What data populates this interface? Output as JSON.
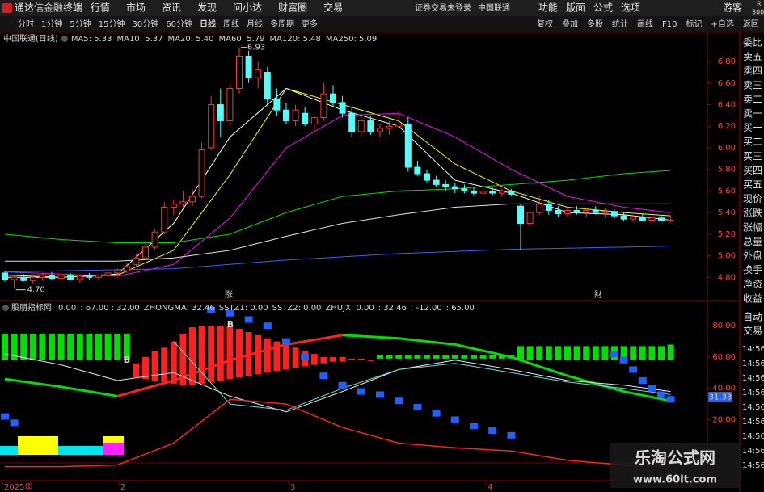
{
  "app": {
    "title": "通达信金融终端",
    "menu": [
      "行情",
      "市场",
      "资讯",
      "发现",
      "问小达",
      "财富圈",
      "交易"
    ],
    "status": "证券交易未登录",
    "stock": "中国联通",
    "tools": [
      "功能",
      "版面",
      "公式",
      "选项"
    ],
    "user": "游客",
    "corner": [
      "R",
      "300"
    ]
  },
  "toolbar": {
    "periods": [
      "分时",
      "1分钟",
      "5分钟",
      "15分钟",
      "30分钟",
      "60分钟",
      "日线",
      "周线",
      "月线",
      "多周期",
      "更多"
    ],
    "active": "日线",
    "actions": [
      "复权",
      "叠加",
      "多股",
      "统计",
      "画线",
      "F10",
      "标记",
      "+自选",
      "返回"
    ]
  },
  "chart_data": [
    {
      "type": "candlestick",
      "title": "中国联通(日线)",
      "up_color": "#ff3232",
      "down_color": "#54fcfc",
      "ohlc": [
        [
          4.84,
          4.86,
          4.76,
          4.78
        ],
        [
          4.78,
          4.82,
          4.7,
          4.8
        ],
        [
          4.8,
          4.83,
          4.76,
          4.77
        ],
        [
          4.77,
          4.81,
          4.74,
          4.8
        ],
        [
          4.8,
          4.84,
          4.77,
          4.82
        ],
        [
          4.82,
          4.85,
          4.78,
          4.79
        ],
        [
          4.79,
          4.83,
          4.76,
          4.82
        ],
        [
          4.82,
          4.84,
          4.77,
          4.78
        ],
        [
          4.78,
          4.82,
          4.75,
          4.81
        ],
        [
          4.81,
          4.84,
          4.78,
          4.8
        ],
        [
          4.8,
          4.83,
          4.77,
          4.82
        ],
        [
          4.82,
          4.86,
          4.8,
          4.84
        ],
        [
          4.84,
          4.88,
          4.82,
          4.86
        ],
        [
          4.86,
          4.93,
          4.84,
          4.9
        ],
        [
          4.92,
          5.02,
          4.9,
          4.98
        ],
        [
          4.98,
          5.12,
          4.96,
          5.08
        ],
        [
          5.08,
          5.25,
          5.06,
          5.22
        ],
        [
          5.22,
          5.5,
          5.2,
          5.45
        ],
        [
          5.45,
          5.52,
          5.38,
          5.48
        ],
        [
          5.48,
          5.6,
          5.44,
          5.5
        ],
        [
          5.5,
          5.62,
          5.46,
          5.55
        ],
        [
          5.55,
          6.05,
          5.53,
          5.98
        ],
        [
          6.0,
          6.48,
          5.98,
          6.4
        ],
        [
          6.4,
          6.55,
          6.1,
          6.25
        ],
        [
          6.25,
          6.6,
          6.2,
          6.55
        ],
        [
          6.55,
          6.93,
          6.5,
          6.85
        ],
        [
          6.85,
          6.9,
          6.6,
          6.65
        ],
        [
          6.65,
          6.8,
          6.55,
          6.72
        ],
        [
          6.7,
          6.75,
          6.4,
          6.45
        ],
        [
          6.45,
          6.55,
          6.3,
          6.35
        ],
        [
          6.35,
          6.42,
          6.22,
          6.25
        ],
        [
          6.25,
          6.4,
          6.2,
          6.35
        ],
        [
          6.32,
          6.38,
          6.2,
          6.22
        ],
        [
          6.22,
          6.3,
          6.15,
          6.28
        ],
        [
          6.28,
          6.6,
          6.25,
          6.5
        ],
        [
          6.5,
          6.58,
          6.38,
          6.42
        ],
        [
          6.42,
          6.48,
          6.28,
          6.32
        ],
        [
          6.32,
          6.38,
          6.1,
          6.15
        ],
        [
          6.15,
          6.3,
          6.1,
          6.25
        ],
        [
          6.25,
          6.3,
          6.12,
          6.15
        ],
        [
          6.15,
          6.22,
          6.1,
          6.18
        ],
        [
          6.18,
          6.25,
          6.12,
          6.2
        ],
        [
          6.2,
          6.35,
          6.18,
          6.22
        ],
        [
          6.22,
          6.28,
          5.78,
          5.82
        ],
        [
          5.82,
          5.88,
          5.74,
          5.76
        ],
        [
          5.76,
          5.8,
          5.68,
          5.7
        ],
        [
          5.7,
          5.74,
          5.64,
          5.66
        ],
        [
          5.66,
          5.7,
          5.6,
          5.64
        ],
        [
          5.64,
          5.68,
          5.58,
          5.62
        ],
        [
          5.62,
          5.66,
          5.58,
          5.6
        ],
        [
          5.6,
          5.64,
          5.56,
          5.58
        ],
        [
          5.58,
          5.62,
          5.54,
          5.6
        ],
        [
          5.6,
          5.63,
          5.56,
          5.58
        ],
        [
          5.58,
          5.62,
          5.55,
          5.6
        ],
        [
          5.6,
          5.62,
          5.56,
          5.57
        ],
        [
          5.46,
          5.48,
          5.05,
          5.3
        ],
        [
          5.3,
          5.44,
          5.28,
          5.4
        ],
        [
          5.4,
          5.55,
          5.38,
          5.48
        ],
        [
          5.48,
          5.52,
          5.38,
          5.42
        ],
        [
          5.42,
          5.46,
          5.36,
          5.39
        ],
        [
          5.39,
          5.45,
          5.36,
          5.42
        ],
        [
          5.42,
          5.46,
          5.38,
          5.4
        ],
        [
          5.4,
          5.44,
          5.36,
          5.42
        ],
        [
          5.42,
          5.46,
          5.38,
          5.4
        ],
        [
          5.4,
          5.44,
          5.36,
          5.41
        ],
        [
          5.41,
          5.43,
          5.35,
          5.37
        ],
        [
          5.37,
          5.4,
          5.32,
          5.34
        ],
        [
          5.34,
          5.38,
          5.31,
          5.36
        ],
        [
          5.36,
          5.39,
          5.32,
          5.33
        ],
        [
          5.33,
          5.38,
          5.3,
          5.35
        ],
        [
          5.35,
          5.38,
          5.32,
          5.33
        ],
        [
          5.33,
          5.36,
          5.31,
          5.33
        ]
      ],
      "ylim": [
        4.69,
        7.07
      ],
      "yticks": [
        {
          "value": 6.8,
          "label": "6.80"
        },
        {
          "value": 6.6,
          "label": "6.60"
        },
        {
          "value": 6.4,
          "label": "6.40"
        },
        {
          "value": 6.2,
          "label": "6.20"
        },
        {
          "value": 6.0,
          "label": "6.00"
        },
        {
          "value": 5.8,
          "label": "5.80"
        },
        {
          "value": 5.6,
          "label": "5.60"
        },
        {
          "value": 5.4,
          "label": "5.40"
        },
        {
          "value": 5.2,
          "label": "5.20"
        },
        {
          "value": 5.0,
          "label": "5.00"
        },
        {
          "value": 4.8,
          "label": "4.80"
        }
      ],
      "high_label": "6.93",
      "low_label": "4.70",
      "markers": [
        "涨",
        "财"
      ],
      "x_labels": [
        "2025年",
        "2",
        "3",
        "4"
      ],
      "ma_x": [
        0,
        6,
        12,
        18,
        24,
        30,
        36,
        42,
        48,
        54,
        60,
        66,
        71
      ],
      "series": [
        {
          "name": "MA5",
          "legend": "MA5: 5.33",
          "color": "#ffffff",
          "values": [
            4.8,
            4.8,
            4.83,
            5.3,
            6.1,
            6.55,
            6.35,
            6.2,
            5.7,
            5.58,
            5.4,
            5.38,
            5.33
          ]
        },
        {
          "name": "MA10",
          "legend": "MA10: 5.37",
          "color": "#ffff00",
          "values": [
            4.82,
            4.8,
            4.82,
            5.05,
            5.75,
            6.55,
            6.4,
            6.25,
            5.85,
            5.6,
            5.45,
            5.4,
            5.37
          ]
        },
        {
          "name": "MA20",
          "legend": "MA20: 5.40",
          "color": "#ff00ff",
          "values": [
            4.85,
            4.83,
            4.81,
            4.92,
            5.35,
            6.0,
            6.3,
            6.32,
            6.1,
            5.8,
            5.55,
            5.45,
            5.4
          ]
        },
        {
          "name": "MA60",
          "legend": "MA60: 5.79",
          "color": "#00e000",
          "values": [
            5.2,
            5.15,
            5.12,
            5.12,
            5.2,
            5.4,
            5.55,
            5.6,
            5.62,
            5.66,
            5.7,
            5.76,
            5.79
          ]
        },
        {
          "name": "MA120",
          "legend": "MA120: 5.48",
          "color": "#e0e0e0",
          "values": [
            4.95,
            4.95,
            4.95,
            4.98,
            5.05,
            5.18,
            5.3,
            5.38,
            5.45,
            5.48,
            5.48,
            5.48,
            5.48
          ]
        },
        {
          "name": "MA250",
          "legend": "MA250: 5.09",
          "color": "#3f5fff",
          "values": [
            4.85,
            4.86,
            4.87,
            4.88,
            4.92,
            4.96,
            4.99,
            5.02,
            5.04,
            5.06,
            5.07,
            5.08,
            5.09
          ]
        }
      ]
    },
    {
      "type": "indicator",
      "title": "股朋指标网",
      "legend": [
        {
          "text": "0.00",
          "color": "#ff4040"
        },
        {
          "text": ": 67.00 : 32.00",
          "color": "#e0e0e0"
        },
        {
          "text": "ZHONGMA: 32.46",
          "color": "#00e000"
        },
        {
          "text": "SSTZ1: 0.00",
          "color": "#ffffff"
        },
        {
          "text": "SSTZ2: 0.00",
          "color": "#3060ff"
        },
        {
          "text": "ZHUJX: 0.00",
          "color": "#ffffff"
        },
        {
          "text": ": 32.46",
          "color": "#00e000"
        },
        {
          "text": ": -12.00",
          "color": "#ff4040"
        },
        {
          "text": ": 65.00",
          "color": "#ffffff"
        }
      ],
      "ylim": [
        -19,
        93
      ],
      "yticks": [
        {
          "value": 80,
          "label": "80.00"
        },
        {
          "value": 60,
          "label": "60.00"
        },
        {
          "value": 40,
          "label": "40.00"
        },
        {
          "value": 20,
          "label": "20.00"
        }
      ],
      "x": [
        0,
        6,
        12,
        18,
        24,
        30,
        36,
        42,
        48,
        54,
        60,
        66,
        71
      ],
      "series": [
        {
          "name": "ZHONGMA",
          "color": "#00e000",
          "width": 3,
          "values": [
            46,
            41,
            35,
            null,
            null,
            null,
            74,
            72,
            68,
            60,
            48,
            38,
            32
          ]
        },
        {
          "name": "ZHONGMA",
          "color": "#ff2020",
          "width": 3,
          "values": [
            null,
            null,
            35,
            45,
            58,
            68,
            74,
            null,
            null,
            null,
            null,
            null,
            null
          ]
        },
        {
          "name": "ZHUJX",
          "color": "#e8e8e8",
          "width": 1,
          "values": [
            62,
            55,
            45,
            50,
            35,
            25,
            38,
            52,
            58,
            52,
            45,
            42,
            38
          ]
        },
        {
          "name": "SSTZ1",
          "color": "#60e0e0",
          "width": 1,
          "values": [
            null,
            null,
            null,
            70,
            30,
            26,
            40,
            52,
            56,
            50,
            44,
            40,
            36
          ]
        },
        {
          "name": "SSTZ2",
          "color": "#ff2020",
          "width": 1.5,
          "values": [
            -10,
            -10,
            -9,
            5,
            33,
            30,
            15,
            5,
            2,
            0,
            -6,
            -9,
            -9
          ]
        }
      ],
      "bars": [
        {
          "color": "#00e000",
          "x": [
            0,
            1,
            2,
            3,
            4,
            5,
            6,
            7,
            8,
            9,
            10,
            11,
            12,
            13
          ],
          "low": [
            58,
            58,
            58,
            58,
            58,
            58,
            58,
            58,
            58,
            58,
            58,
            58,
            58,
            58
          ],
          "high": [
            75,
            75,
            75,
            75,
            75,
            75,
            75,
            75,
            75,
            75,
            75,
            75,
            75,
            75
          ]
        },
        {
          "color": "#ff2020",
          "x": [
            14,
            15,
            16,
            17,
            18,
            19,
            20,
            21,
            22,
            23,
            24,
            25,
            26,
            27,
            28,
            29,
            30,
            31,
            32,
            33,
            34,
            35,
            36,
            37,
            38,
            39
          ],
          "low": [
            47,
            46,
            45,
            44,
            43,
            42,
            42,
            43,
            44,
            45,
            46,
            47,
            48,
            49,
            50,
            51,
            52,
            53,
            54,
            55,
            56,
            57,
            57,
            58,
            58,
            58
          ],
          "high": [
            56,
            60,
            64,
            66,
            70,
            75,
            79,
            80,
            80,
            80,
            80,
            78,
            76,
            74,
            72,
            70,
            68,
            66,
            64,
            62,
            60,
            60,
            60,
            59,
            59,
            58
          ]
        },
        {
          "color": "#00e000",
          "x": [
            40,
            41,
            42,
            43,
            44,
            45,
            46,
            47,
            48,
            49,
            50,
            51,
            52,
            53,
            54
          ],
          "low": [
            59,
            59,
            59,
            59,
            59,
            59,
            59,
            59,
            59,
            59,
            59,
            59,
            59,
            59,
            59
          ],
          "high": [
            61,
            61,
            61,
            61,
            61,
            61,
            61,
            61,
            61,
            61,
            61,
            61,
            61,
            61,
            61
          ]
        },
        {
          "color": "#00e000",
          "x": [
            55,
            56,
            57,
            58,
            59,
            60,
            61,
            62,
            63,
            64,
            65,
            66,
            67,
            68,
            69,
            70,
            71
          ],
          "low": [
            58,
            58,
            58,
            58,
            58,
            58,
            58,
            58,
            58,
            58,
            58,
            58,
            58,
            58,
            58,
            58,
            58
          ],
          "high": [
            67,
            67,
            67,
            67,
            67,
            67,
            67,
            67,
            67,
            67,
            67,
            67,
            67,
            67,
            67,
            67,
            68
          ]
        }
      ],
      "squares": {
        "color": "#2060ff",
        "x": [
          0,
          1,
          22,
          24,
          26,
          28,
          30,
          32,
          34,
          36,
          38,
          40,
          42,
          44,
          46,
          48,
          50,
          52,
          54,
          65,
          66,
          67,
          68,
          69,
          70,
          71
        ],
        "values": [
          22,
          18,
          90,
          88,
          84,
          80,
          70,
          60,
          48,
          42,
          38,
          36,
          32,
          28,
          24,
          20,
          16,
          13,
          10,
          62,
          58,
          52,
          45,
          40,
          36,
          33
        ]
      },
      "signals": [
        "B",
        "B"
      ],
      "last_label": "31.33"
    }
  ],
  "quote_panel": {
    "labels": [
      "委比",
      "卖五",
      "卖四",
      "卖三",
      "卖二",
      "卖一",
      "买一",
      "买二",
      "买三",
      "买四",
      "买五",
      "现价",
      "涨跌",
      "涨幅",
      "总量",
      "外盘",
      "换手",
      "净资",
      "收益"
    ],
    "trade": [
      "自动",
      "交易"
    ],
    "times": [
      "14:56",
      "14:56",
      "14:56",
      "14:56",
      "14:56",
      "14:56",
      "14:56",
      "14:56",
      "14:56"
    ]
  },
  "watermark": {
    "title": "乐淘公式网",
    "url": "www.60lt.com"
  }
}
